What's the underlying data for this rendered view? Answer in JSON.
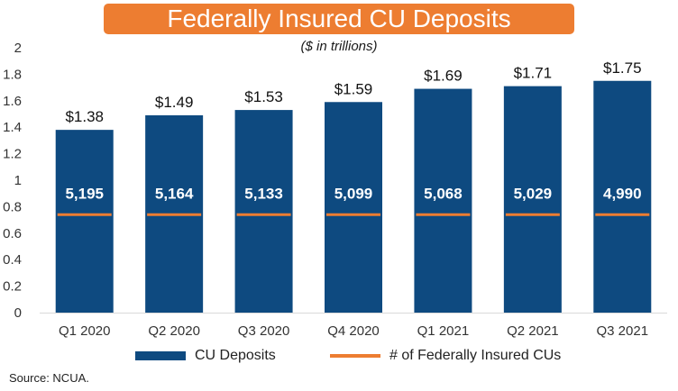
{
  "chart_data": {
    "type": "bar",
    "title": "Federally Insured CU Deposits",
    "subtitle": "($ in trillions)",
    "categories": [
      "Q1 2020",
      "Q2 2020",
      "Q3 2020",
      "Q4 2020",
      "Q1 2021",
      "Q2 2021",
      "Q3 2021"
    ],
    "series": [
      {
        "name": "CU Deposits",
        "kind": "bar",
        "values": [
          1.38,
          1.49,
          1.53,
          1.59,
          1.69,
          1.71,
          1.75
        ],
        "labels": [
          "$1.38",
          "$1.49",
          "$1.53",
          "$1.59",
          "$1.69",
          "$1.71",
          "$1.75"
        ],
        "color": "#0e4a80"
      },
      {
        "name": "# of Federally Insured CUs",
        "kind": "line-marker",
        "values": [
          5195,
          5164,
          5133,
          5099,
          5068,
          5029,
          4990
        ],
        "labels": [
          "5,195",
          "5,164",
          "5,133",
          "5,099",
          "5,068",
          "5,029",
          "4,990"
        ],
        "color": "#ed7d31"
      }
    ],
    "ylim": [
      0,
      2
    ],
    "yticks": [
      "0",
      "0.2",
      "0.4",
      "0.6",
      "0.8",
      "1",
      "1.2",
      "1.4",
      "1.6",
      "1.8",
      "2"
    ],
    "xlabel": "",
    "ylabel": "",
    "grid": false,
    "legend_position": "bottom"
  },
  "colors": {
    "title_bg": "#ed7d31",
    "bar": "#0e4a80",
    "marker": "#ed7d31"
  },
  "source": "Source: NCUA."
}
